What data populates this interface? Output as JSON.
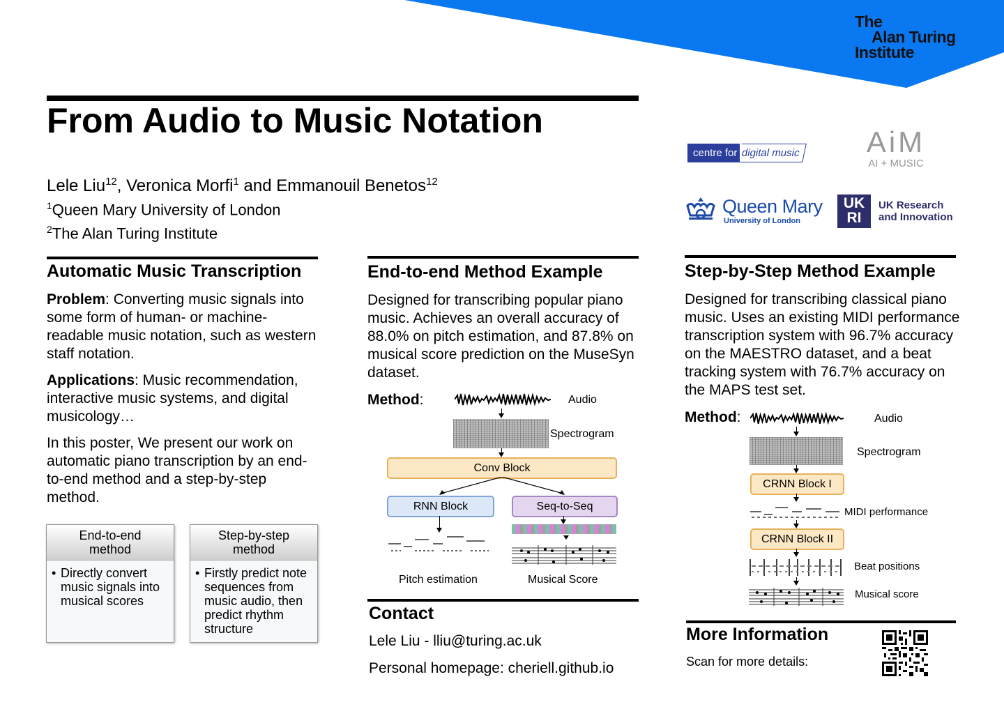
{
  "logo": {
    "line1": "The",
    "line2": "Alan Turing",
    "line3": "Institute"
  },
  "title": "From Audio to Music Notation",
  "authors": {
    "line": [
      "Lele Liu",
      "12",
      ", Veronica Morfi",
      "1",
      " and Emmanouil Benetos",
      "12"
    ],
    "affiliations": [
      {
        "sup": "1",
        "text": "Queen Mary University of London"
      },
      {
        "sup": "2",
        "text": "The Alan Turing Institute"
      }
    ]
  },
  "partners": {
    "c4dm": {
      "left": "centre for",
      "right": "digital music"
    },
    "aim": {
      "mark": "AiM",
      "sub": "AI + MUSIC"
    },
    "qmul": {
      "name": "Queen Mary",
      "sub": "University of London"
    },
    "ukri": {
      "mark1": "UK",
      "mark2": "RI",
      "line1": "UK Research",
      "line2": "and Innovation"
    }
  },
  "amt": {
    "title": "Automatic Music Transcription",
    "problem_label": "Problem",
    "problem_text": ": Converting music signals into some form of human- or machine-readable music notation, such as western staff notation.",
    "applications_label": "Applications",
    "applications_text": ": Music recommendation, interactive music systems, and digital musicology…",
    "intro": "In this poster, We present our work on automatic piano transcription by an end-to-end method and a step-by-step method.",
    "cards": [
      {
        "title": "End-to-end method",
        "bullet": "Directly convert music signals into musical scores"
      },
      {
        "title": "Step-by-step method",
        "bullet": "Firstly predict note sequences from music audio, then predict rhythm structure"
      }
    ]
  },
  "e2e": {
    "title": "End-to-end Method Example",
    "text": "Designed for transcribing popular piano music. Achieves an overall accuracy of 88.0% on pitch estimation, and 87.8% on musical score prediction on the MuseSyn dataset.",
    "method_label": "Method",
    "diagram": {
      "audio": "Audio",
      "spectrogram": "Spectrogram",
      "conv": "Conv Block",
      "rnn": "RNN Block",
      "seq": "Seq-to-Seq",
      "pitch": "Pitch estimation",
      "score": "Musical Score"
    }
  },
  "contact": {
    "title": "Contact",
    "line1": "Lele Liu - lliu@turing.ac.uk",
    "line2": "Personal homepage: cheriell.github.io"
  },
  "sbs": {
    "title": "Step-by-Step Method Example",
    "text": "Designed for transcribing classical piano music. Uses an existing MIDI performance transcription system with 96.7% accuracy on the MAESTRO dataset, and a beat tracking system with 76.7% accuracy on the MAPS test set.",
    "method_label": "Method",
    "diagram": {
      "audio": "Audio",
      "spectrogram": "Spectrogram",
      "crnn1": "CRNN Block I",
      "midi": "MIDI performance",
      "crnn2": "CRNN Block II",
      "beats": "Beat positions",
      "score": "Musical score"
    }
  },
  "more": {
    "title": "More Information",
    "text": "Scan for more details:"
  }
}
